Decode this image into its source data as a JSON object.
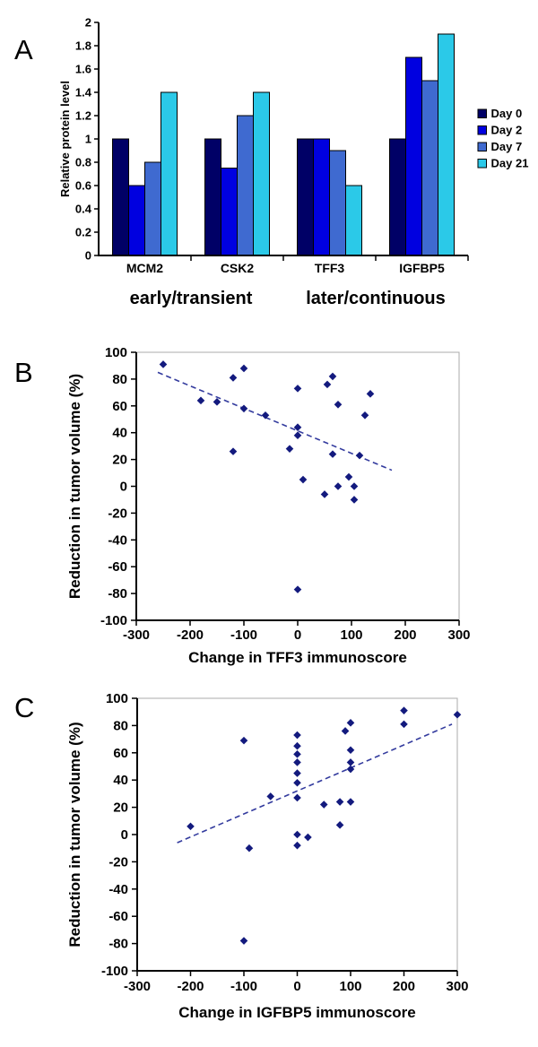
{
  "panels": [
    {
      "letter": "A"
    },
    {
      "letter": "B"
    },
    {
      "letter": "C"
    }
  ],
  "chart_data": [
    {
      "type": "bar",
      "panel": "A",
      "ylabel": "Relative protein level",
      "ylim": [
        0,
        2
      ],
      "yticks": [
        0,
        0.2,
        0.4,
        0.6,
        0.8,
        1,
        1.2,
        1.4,
        1.6,
        1.8,
        2
      ],
      "ytick_labels": [
        "0",
        "0.2",
        "0.4",
        "0.6",
        "0.8",
        "1",
        "1.2",
        "1.4",
        "1.6",
        "1.8",
        "2"
      ],
      "categories": [
        "MCM2",
        "CSK2",
        "TFF3",
        "IGFBP5"
      ],
      "group_labels": [
        {
          "text": "early/transient",
          "span": [
            0,
            1
          ]
        },
        {
          "text": "later/continuous",
          "span": [
            2,
            3
          ]
        }
      ],
      "series": [
        {
          "name": "Day 0",
          "color": "#000066",
          "values": [
            1.0,
            1.0,
            1.0,
            1.0
          ]
        },
        {
          "name": "Day 2",
          "color": "#0000E0",
          "values": [
            0.6,
            0.75,
            1.0,
            1.7
          ]
        },
        {
          "name": "Day 7",
          "color": "#3F6AD0",
          "values": [
            0.8,
            1.2,
            0.9,
            1.5
          ]
        },
        {
          "name": "Day 21",
          "color": "#2BC9E8",
          "values": [
            1.4,
            1.4,
            0.6,
            1.9
          ]
        }
      ],
      "legend_position": "right",
      "grid": false
    },
    {
      "type": "scatter",
      "panel": "B",
      "xlabel": "Change in TFF3 immunoscore",
      "ylabel": "Reduction in tumor volume (%)",
      "xlim": [
        -300,
        300
      ],
      "ylim": [
        -100,
        100
      ],
      "xticks": [
        -300,
        -200,
        -100,
        0,
        100,
        200,
        300
      ],
      "xtick_labels": [
        "-300",
        "-200",
        "-100",
        "0",
        "100",
        "200",
        "300"
      ],
      "yticks": [
        -100,
        -80,
        -60,
        -40,
        -20,
        0,
        20,
        40,
        60,
        80,
        100
      ],
      "ytick_labels": [
        "-100",
        "-80",
        "-60",
        "-40",
        "-20",
        "0",
        "20",
        "40",
        "60",
        "80",
        "100"
      ],
      "marker_color": "#131A7E",
      "trendline": {
        "x1": -260,
        "y1": 85,
        "x2": 175,
        "y2": 12,
        "style": "dashed",
        "color": "#333B9E"
      },
      "points": [
        [
          -250,
          91
        ],
        [
          -180,
          64
        ],
        [
          -150,
          63
        ],
        [
          -120,
          81
        ],
        [
          -120,
          26
        ],
        [
          -100,
          88
        ],
        [
          -100,
          58
        ],
        [
          -60,
          53
        ],
        [
          -15,
          28
        ],
        [
          0,
          73
        ],
        [
          0,
          44
        ],
        [
          0,
          38
        ],
        [
          0,
          -77
        ],
        [
          10,
          5
        ],
        [
          50,
          -6
        ],
        [
          55,
          76
        ],
        [
          65,
          82
        ],
        [
          65,
          24
        ],
        [
          75,
          61
        ],
        [
          75,
          0
        ],
        [
          95,
          7
        ],
        [
          105,
          0
        ],
        [
          105,
          -10
        ],
        [
          115,
          23
        ],
        [
          125,
          53
        ],
        [
          135,
          69
        ]
      ],
      "grid": false
    },
    {
      "type": "scatter",
      "panel": "C",
      "xlabel": "Change in IGFBP5 immunoscore",
      "ylabel": "Reduction in tumor volume (%)",
      "xlim": [
        -300,
        300
      ],
      "ylim": [
        -100,
        100
      ],
      "xticks": [
        -300,
        -200,
        -100,
        0,
        100,
        200,
        300
      ],
      "xtick_labels": [
        "-300",
        "-200",
        "-100",
        "0",
        "100",
        "200",
        "300"
      ],
      "yticks": [
        -100,
        -80,
        -60,
        -40,
        -20,
        0,
        20,
        40,
        60,
        80,
        100
      ],
      "ytick_labels": [
        "-100",
        "-80",
        "-60",
        "-40",
        "-20",
        "0",
        "20",
        "40",
        "60",
        "80",
        "100"
      ],
      "marker_color": "#131A7E",
      "trendline": {
        "x1": -225,
        "y1": -6,
        "x2": 290,
        "y2": 81,
        "style": "dashed",
        "color": "#333B9E"
      },
      "points": [
        [
          -200,
          6
        ],
        [
          -100,
          69
        ],
        [
          -100,
          -78
        ],
        [
          -90,
          -10
        ],
        [
          -50,
          28
        ],
        [
          0,
          73
        ],
        [
          0,
          65
        ],
        [
          0,
          59
        ],
        [
          0,
          53
        ],
        [
          0,
          45
        ],
        [
          0,
          38
        ],
        [
          0,
          27
        ],
        [
          0,
          0
        ],
        [
          0,
          -8
        ],
        [
          20,
          -2
        ],
        [
          50,
          22
        ],
        [
          80,
          24
        ],
        [
          80,
          7
        ],
        [
          90,
          76
        ],
        [
          100,
          82
        ],
        [
          100,
          62
        ],
        [
          100,
          53
        ],
        [
          100,
          48
        ],
        [
          100,
          24
        ],
        [
          200,
          91
        ],
        [
          200,
          81
        ],
        [
          300,
          88
        ]
      ],
      "grid": false
    }
  ]
}
